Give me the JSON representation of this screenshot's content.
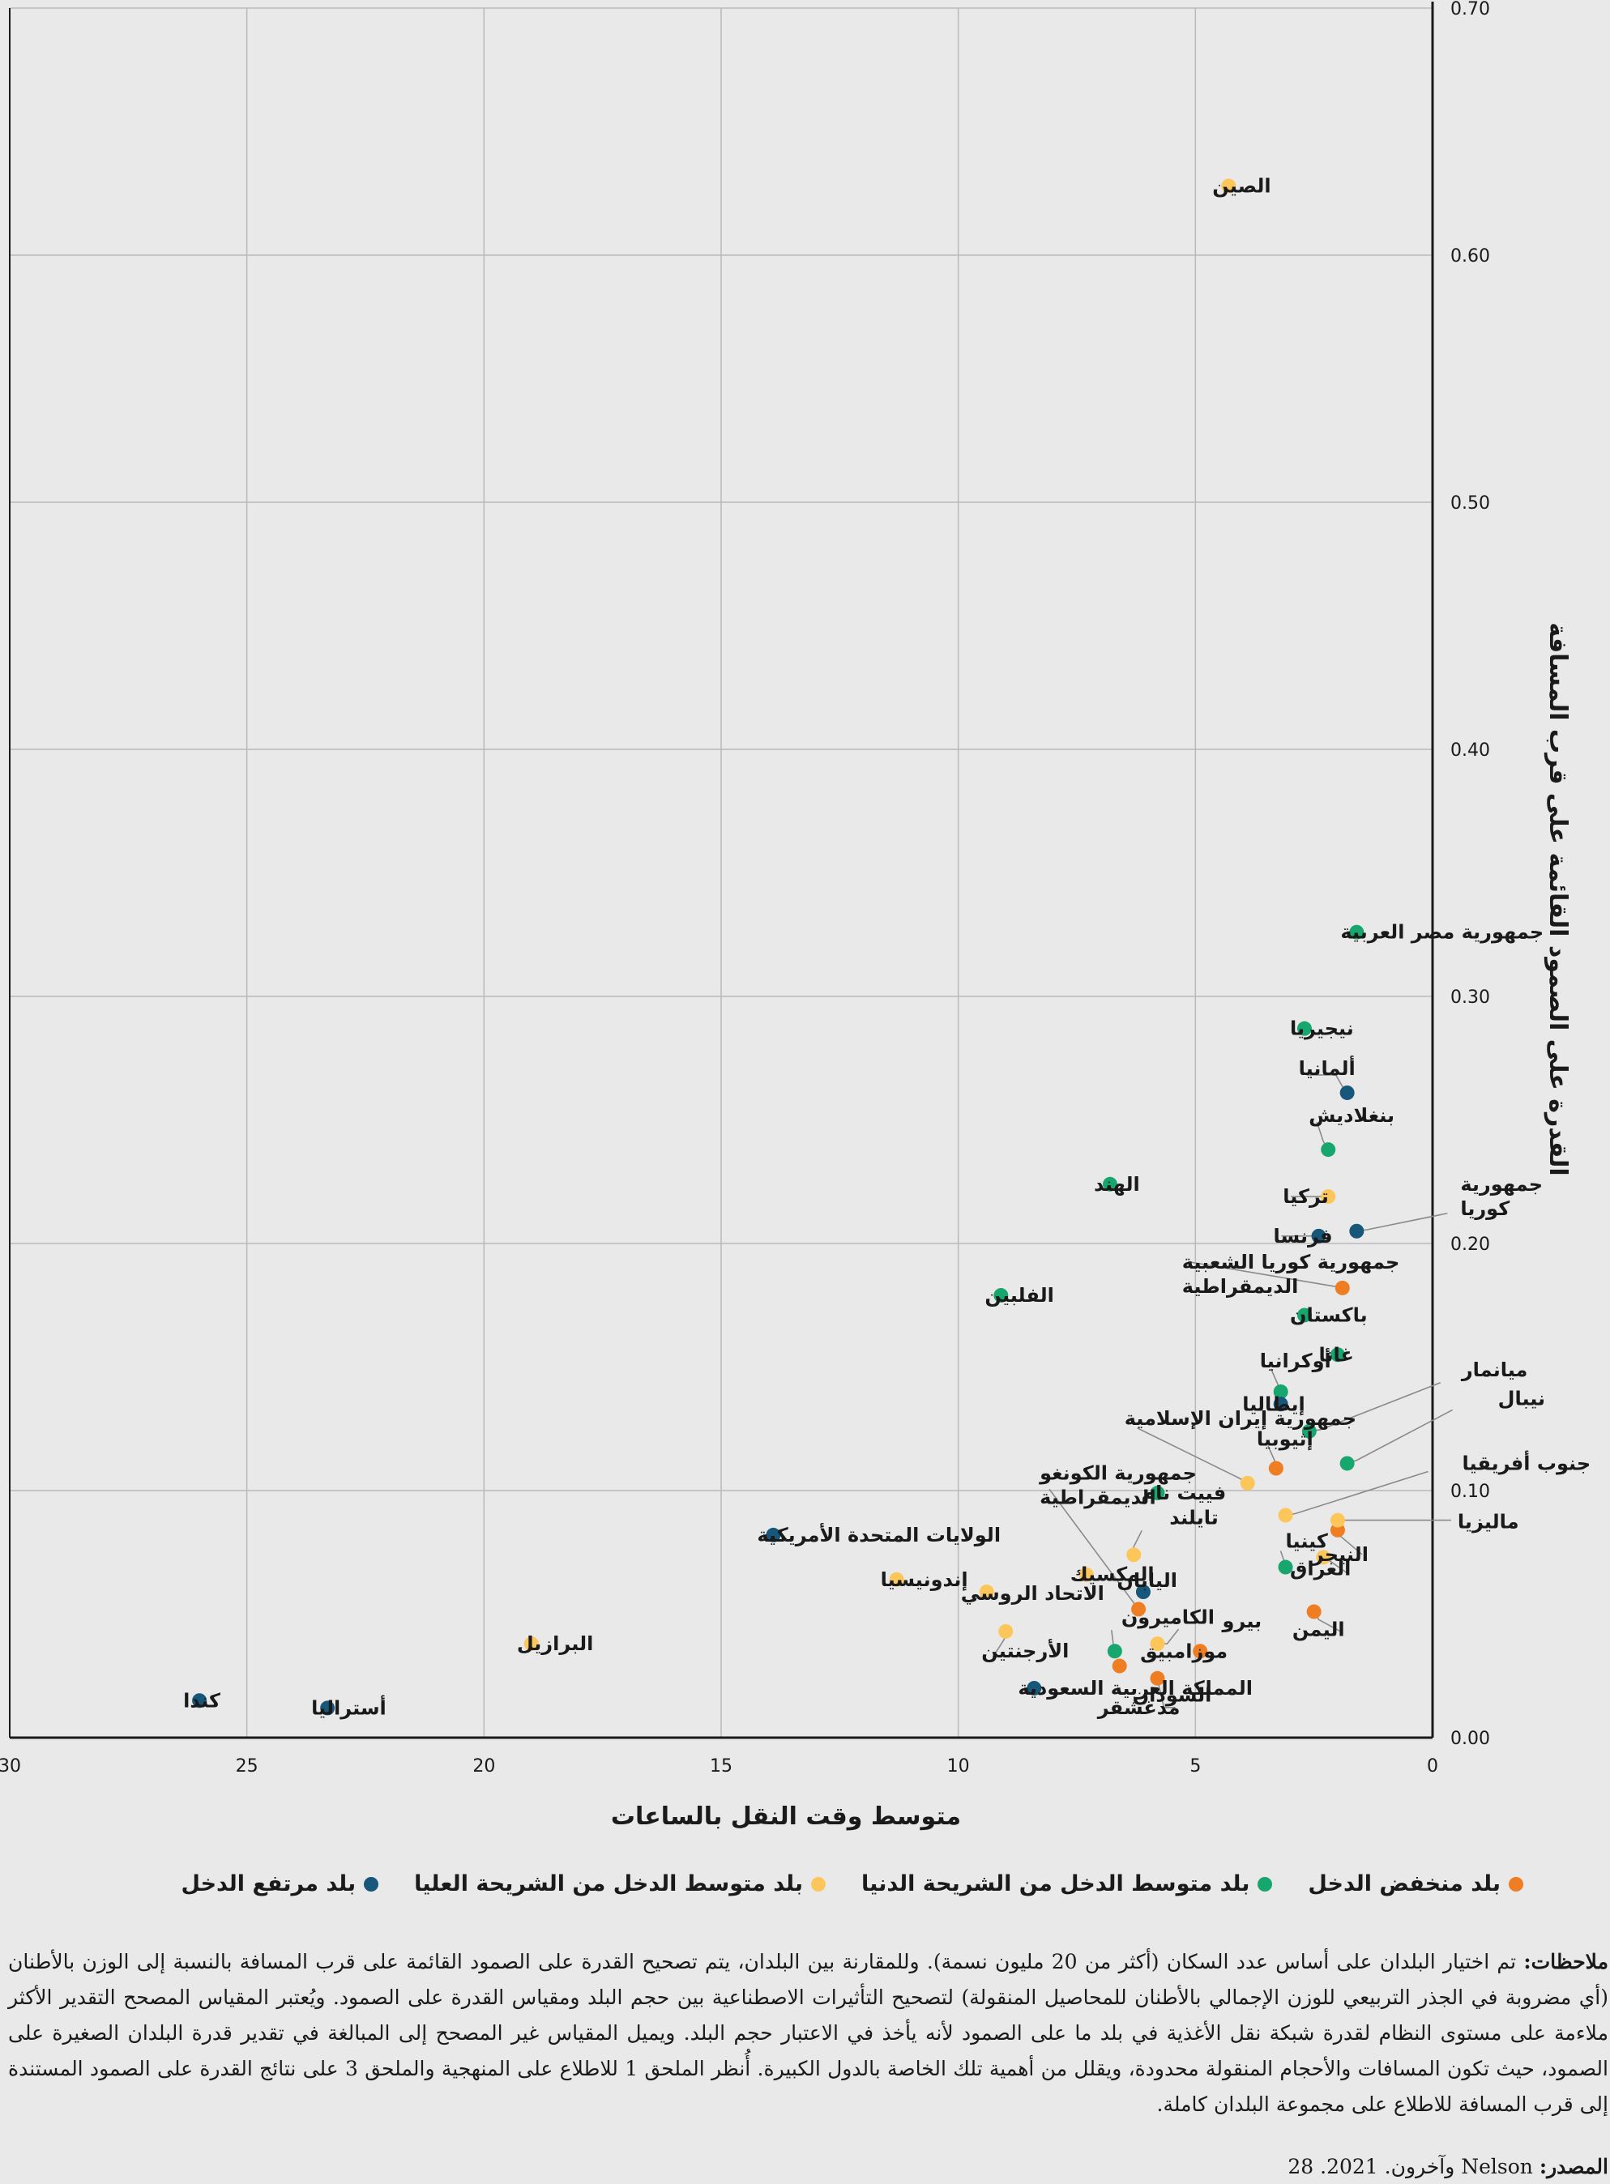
{
  "chart_data": {
    "type": "scatter",
    "xlabel": "متوسط وقت النقل بالساعات",
    "ylabel": "القدرة على الصمود القائمة على قرب المسافة",
    "xlim": [
      0,
      30
    ],
    "ylim": [
      0,
      0.7
    ],
    "x_reversed": true,
    "y_axis_side": "right",
    "grid": true,
    "x_ticks": [
      "30",
      "25",
      "20",
      "15",
      "10",
      "5",
      "0"
    ],
    "y_ticks": [
      "0.00",
      "0.10",
      "0.20",
      "0.30",
      "0.40",
      "0.50",
      "0.60",
      "0.70"
    ],
    "legend_position": "bottom",
    "series": [
      {
        "name": "بلد منخفض الدخل",
        "color": "#ef7d22",
        "points": [
          {
            "x": 1.9,
            "y": 0.182,
            "label": "جمهورية كوريا الشعبية الديمقراطية"
          },
          {
            "x": 3.3,
            "y": 0.109,
            "label": "إثيوبيا"
          },
          {
            "x": 2.0,
            "y": 0.084,
            "label": "النيجر"
          },
          {
            "x": 6.2,
            "y": 0.052,
            "label": "جمهورية الكونغو الديمقراطية"
          },
          {
            "x": 2.5,
            "y": 0.051,
            "label": "اليمن"
          },
          {
            "x": 4.9,
            "y": 0.035,
            "label": "موزامبيق"
          },
          {
            "x": 6.6,
            "y": 0.029,
            "label": "السودان"
          },
          {
            "x": 5.8,
            "y": 0.024,
            "label": "مدغشقر"
          }
        ]
      },
      {
        "name": "بلد متوسط الدخل من الشريحة الدنيا",
        "color": "#17a66d",
        "points": [
          {
            "x": 1.6,
            "y": 0.326,
            "label": "جمهورية مصر العربية"
          },
          {
            "x": 2.7,
            "y": 0.287,
            "label": "نيجيريا"
          },
          {
            "x": 2.2,
            "y": 0.238,
            "label": "بنغلاديش"
          },
          {
            "x": 6.8,
            "y": 0.224,
            "label": "الهند"
          },
          {
            "x": 9.1,
            "y": 0.179,
            "label": "الفلبين"
          },
          {
            "x": 2.7,
            "y": 0.171,
            "label": "باكستان"
          },
          {
            "x": 2.0,
            "y": 0.155,
            "label": "غانا"
          },
          {
            "x": 3.2,
            "y": 0.14,
            "label": "أوكرانيا"
          },
          {
            "x": 2.6,
            "y": 0.124,
            "label": "ميانمار"
          },
          {
            "x": 1.8,
            "y": 0.111,
            "label": "نيبال"
          },
          {
            "x": 5.8,
            "y": 0.099,
            "label": "فييت نام"
          },
          {
            "x": 3.1,
            "y": 0.069,
            "label": "كينيا"
          },
          {
            "x": 6.7,
            "y": 0.035,
            "label": "الكاميرون"
          }
        ]
      },
      {
        "name": "بلد متوسط الدخل من الشريحة العليا",
        "color": "#fdc65a",
        "points": [
          {
            "x": 4.3,
            "y": 0.628,
            "label": "الصين"
          },
          {
            "x": 2.2,
            "y": 0.219,
            "label": "تركيا"
          },
          {
            "x": 3.9,
            "y": 0.103,
            "label": "جمهورية إيران الإسلامية"
          },
          {
            "x": 3.1,
            "y": 0.09,
            "label": "جنوب أفريقيا"
          },
          {
            "x": 2.0,
            "y": 0.088,
            "label": "ماليزيا"
          },
          {
            "x": 6.3,
            "y": 0.074,
            "label": "تايلند"
          },
          {
            "x": 2.3,
            "y": 0.073,
            "label": "العراق"
          },
          {
            "x": 7.3,
            "y": 0.066,
            "label": "المكسيك"
          },
          {
            "x": 11.3,
            "y": 0.064,
            "label": "إندونيسيا"
          },
          {
            "x": 9.4,
            "y": 0.059,
            "label": "الاتحاد الروسي"
          },
          {
            "x": 9.0,
            "y": 0.043,
            "label": "الأرجنتين"
          },
          {
            "x": 5.8,
            "y": 0.038,
            "label": "بيرو"
          },
          {
            "x": 19.0,
            "y": 0.038,
            "label": "البرازيل"
          }
        ]
      },
      {
        "name": "بلد مرتفع الدخل",
        "color": "#16577a",
        "points": [
          {
            "x": 1.8,
            "y": 0.261,
            "label": "ألمانيا"
          },
          {
            "x": 1.6,
            "y": 0.205,
            "label": "جمهورية كوريا"
          },
          {
            "x": 2.4,
            "y": 0.203,
            "label": "فرنسا"
          },
          {
            "x": 3.2,
            "y": 0.135,
            "label": "إيطاليا"
          },
          {
            "x": 13.9,
            "y": 0.082,
            "label": "الولايات المتحدة الأمريكية"
          },
          {
            "x": 6.1,
            "y": 0.059,
            "label": "اليابان"
          },
          {
            "x": 8.4,
            "y": 0.02,
            "label": "المملكة العربية السعودية"
          },
          {
            "x": 26.0,
            "y": 0.015,
            "label": "كندا"
          },
          {
            "x": 23.3,
            "y": 0.012,
            "label": "أستراليا"
          }
        ]
      }
    ]
  },
  "legend": {
    "low": "بلد منخفض الدخل",
    "lower_middle": "بلد متوسط الدخل من الشريحة الدنيا",
    "upper_middle": "بلد متوسط الدخل من الشريحة العليا",
    "high": "بلد مرتفع الدخل"
  },
  "notes": {
    "label": "ملاحظات:",
    "text": "تم اختيار البلدان على أساس عدد السكان (أكثر من 20 مليون نسمة). وللمقارنة بين البلدان، يتم تصحيح القدرة على الصمود القائمة على قرب المسافة بالنسبة إلى الوزن بالأطنان (أي مضروبة في الجذر التربيعي للوزن الإجمالي بالأطنان للمحاصيل المنقولة) لتصحيح التأثيرات الاصطناعية بين حجم البلد ومقياس القدرة على الصمود. ويُعتبر المقياس المصحح التقدير الأكثر ملاءمة على مستوى النظام لقدرة شبكة نقل الأغذية في بلد ما على الصمود لأنه يأخذ في الاعتبار حجم البلد. ويميل المقياس غير المصحح إلى المبالغة في تقدير قدرة البلدان الصغيرة على الصمود، حيث تكون المسافات والأحجام المنقولة محدودة، ويقلل من أهمية تلك الخاصة بالدول الكبيرة. أُنظر الملحق 1 للاطلاع على المنهجية والملحق 3 على نتائج القدرة على الصمود المستندة إلى قرب المسافة للاطلاع على مجموعة البلدان كاملة."
  },
  "source": {
    "label": "المصدر:",
    "text": "Nelson وآخرون. 2021. 28"
  }
}
